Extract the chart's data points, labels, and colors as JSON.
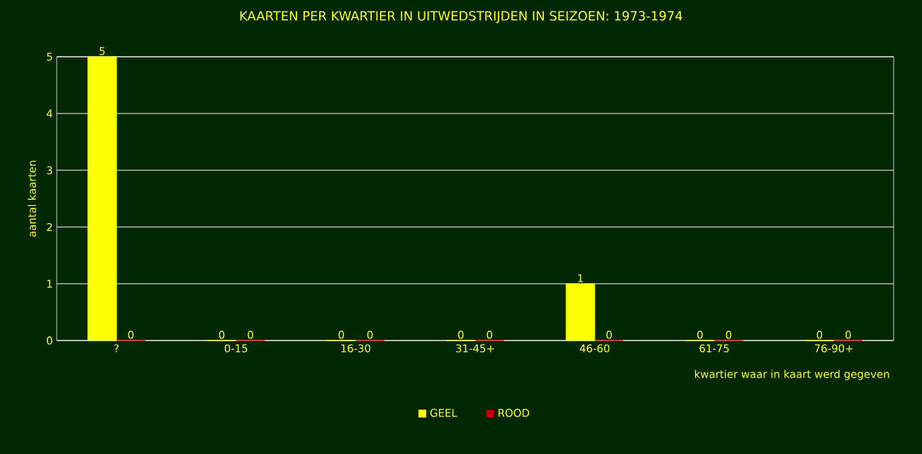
{
  "chart_data": {
    "type": "bar",
    "title": "KAARTEN PER KWARTIER IN UITWEDSTRIJDEN IN SEIZOEN: 1973-1974",
    "xlabel": "kwartier waar in kaart werd gegeven",
    "ylabel": "aantal kaarten",
    "categories": [
      "?",
      "0-15",
      "16-30",
      "31-45+",
      "46-60",
      "61-75",
      "76-90+"
    ],
    "series": [
      {
        "name": "GEEL",
        "color": "#ffff00",
        "values": [
          5,
          0,
          0,
          0,
          1,
          0,
          0
        ]
      },
      {
        "name": "ROOD",
        "color": "#cc0000",
        "values": [
          0,
          0,
          0,
          0,
          0,
          0,
          0
        ]
      }
    ],
    "ylim": [
      0,
      5
    ],
    "yticks": [
      0,
      1,
      2,
      3,
      4,
      5
    ],
    "grid": "y",
    "legend": "bottom",
    "data_labels": true
  }
}
